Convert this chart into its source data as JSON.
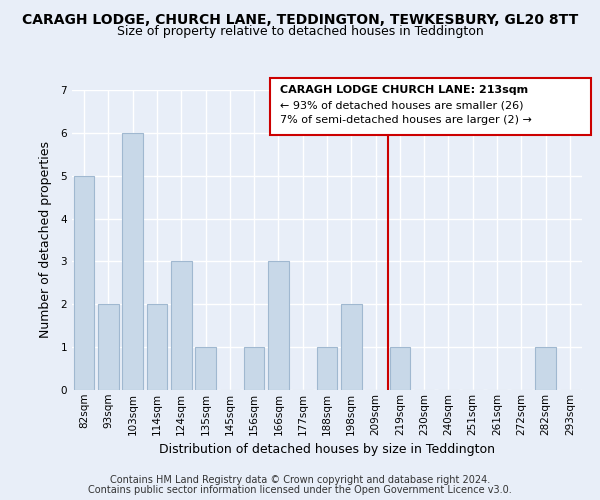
{
  "title": "CARAGH LODGE, CHURCH LANE, TEDDINGTON, TEWKESBURY, GL20 8TT",
  "subtitle": "Size of property relative to detached houses in Teddington",
  "xlabel": "Distribution of detached houses by size in Teddington",
  "ylabel": "Number of detached properties",
  "footer_line1": "Contains HM Land Registry data © Crown copyright and database right 2024.",
  "footer_line2": "Contains public sector information licensed under the Open Government Licence v3.0.",
  "categories": [
    "82sqm",
    "93sqm",
    "103sqm",
    "114sqm",
    "124sqm",
    "135sqm",
    "145sqm",
    "156sqm",
    "166sqm",
    "177sqm",
    "188sqm",
    "198sqm",
    "209sqm",
    "219sqm",
    "230sqm",
    "240sqm",
    "251sqm",
    "261sqm",
    "272sqm",
    "282sqm",
    "293sqm"
  ],
  "values": [
    5,
    2,
    6,
    2,
    3,
    1,
    0,
    1,
    3,
    0,
    1,
    2,
    0,
    1,
    0,
    0,
    0,
    0,
    0,
    1,
    0
  ],
  "bar_color": "#c8d8e8",
  "bar_edge_color": "#a0b8d0",
  "marker_line_color": "#cc0000",
  "ylim": [
    0,
    7
  ],
  "yticks": [
    0,
    1,
    2,
    3,
    4,
    5,
    6,
    7
  ],
  "annotation_title": "CARAGH LODGE CHURCH LANE: 213sqm",
  "annotation_line1": "← 93% of detached houses are smaller (26)",
  "annotation_line2": "7% of semi-detached houses are larger (2) →",
  "bg_color": "#e8eef8",
  "plot_bg_color": "#e8eef8",
  "title_fontsize": 10,
  "subtitle_fontsize": 9,
  "axis_label_fontsize": 9,
  "tick_fontsize": 7.5,
  "footer_fontsize": 7
}
